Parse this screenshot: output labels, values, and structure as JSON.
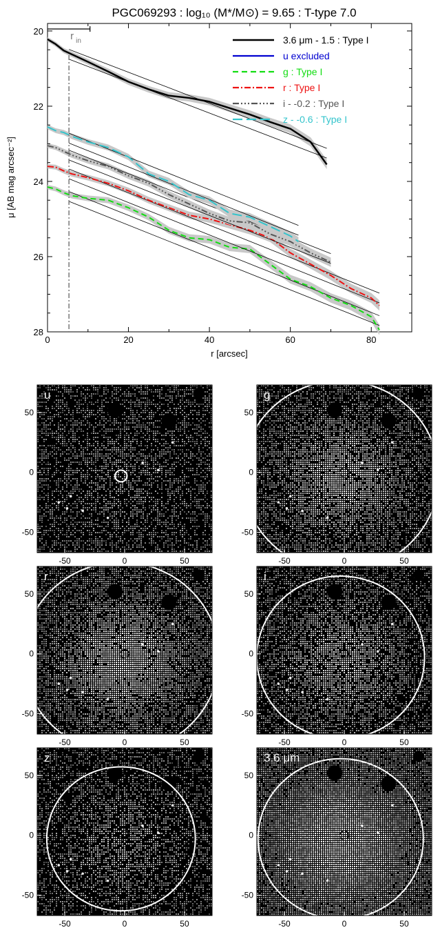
{
  "chart_data": [
    {
      "type": "line",
      "title": "PGC069293 : log₁₀ (M*/M⊙) = 9.65 : T-type 7.0",
      "xlabel": "r [arcsec]",
      "ylabel": "μ [AB mag arcsec⁻²]",
      "xlim": [
        0,
        90
      ],
      "ylim": [
        28,
        19.8
      ],
      "y_inverted": true,
      "xticks": [
        "0",
        "20",
        "40",
        "60",
        "80"
      ],
      "yticks": [
        "20",
        "22",
        "24",
        "26",
        "28"
      ],
      "r_in_label": "r",
      "r_in_sub": "in",
      "r_in": 5.3,
      "legend_position": "top-right",
      "series": [
        {
          "name": "3.6 μm - 1.5 : Type I",
          "color": "#000000",
          "dash": "",
          "x": [
            0,
            2,
            4,
            6,
            10,
            15,
            20,
            25,
            30,
            35,
            40,
            45,
            50,
            55,
            60,
            65,
            69
          ],
          "y": [
            20.22,
            20.35,
            20.52,
            20.62,
            20.82,
            21.08,
            21.35,
            21.55,
            21.72,
            21.78,
            21.88,
            22.05,
            22.22,
            22.42,
            22.6,
            22.95,
            23.55
          ],
          "fit": {
            "x": [
              5.3,
              69
            ],
            "y": [
              20.62,
              23.25
            ]
          }
        },
        {
          "name": "u excluded",
          "color": "#0000d0",
          "dash": ""
        },
        {
          "name": "g : Type I",
          "color": "#11dd11",
          "dash": "8,5",
          "x": [
            0,
            2,
            4,
            6,
            10,
            15,
            20,
            25,
            30,
            35,
            40,
            45,
            50,
            55,
            60,
            65,
            70,
            75,
            80,
            82
          ],
          "y": [
            24.15,
            24.2,
            24.3,
            24.38,
            24.45,
            24.5,
            24.7,
            24.95,
            25.3,
            25.5,
            25.55,
            25.75,
            25.8,
            26.2,
            26.6,
            26.8,
            27.1,
            27.3,
            27.6,
            27.95
          ],
          "fit": {
            "x": [
              5.3,
              82
            ],
            "y": [
              24.4,
              27.7
            ]
          }
        },
        {
          "name": "r : Type I",
          "color": "#ee1111",
          "dash": "9,3,2,3",
          "x": [
            0,
            2,
            4,
            6,
            10,
            15,
            20,
            25,
            30,
            35,
            40,
            45,
            50,
            55,
            60,
            65,
            70,
            75,
            80,
            82
          ],
          "y": [
            23.6,
            23.62,
            23.72,
            23.8,
            23.9,
            24.05,
            24.25,
            24.5,
            24.7,
            24.9,
            25.0,
            25.15,
            25.3,
            25.5,
            25.9,
            26.2,
            26.5,
            26.85,
            27.1,
            27.3
          ],
          "fit": {
            "x": [
              5.3,
              82
            ],
            "y": [
              23.8,
              27.1
            ]
          }
        },
        {
          "name": "i - -0.2 : Type I",
          "color": "#555555",
          "dash": "9,3,2,3,2,3,2,3",
          "x": [
            0,
            2,
            4,
            6,
            10,
            15,
            20,
            25,
            30,
            35,
            40,
            45,
            50,
            55,
            60,
            65,
            70
          ],
          "y": [
            23.05,
            23.1,
            23.2,
            23.3,
            23.45,
            23.6,
            23.85,
            24.05,
            24.35,
            24.6,
            24.85,
            25.05,
            25.1,
            25.4,
            25.6,
            25.9,
            26.15
          ],
          "fit": {
            "x": [
              5.3,
              70
            ],
            "y": [
              23.3,
              26.05
            ]
          }
        },
        {
          "name": "z - -0.6 : Type I",
          "color": "#33c4cc",
          "dash": "14,6",
          "x": [
            0,
            2,
            4,
            6,
            10,
            15,
            20,
            25,
            30,
            35,
            40,
            45,
            50,
            55,
            60,
            62
          ],
          "y": [
            22.55,
            22.65,
            22.7,
            22.8,
            22.95,
            23.1,
            23.35,
            23.8,
            24.0,
            24.35,
            24.5,
            24.85,
            24.95,
            25.2,
            25.45,
            25.6
          ],
          "fit": {
            "x": [
              5.3,
              62
            ],
            "y": [
              22.85,
              25.3
            ]
          }
        }
      ]
    }
  ],
  "images": {
    "ticks": [
      "-50",
      "0",
      "50"
    ],
    "panels": [
      {
        "label": "u",
        "ring_r": 5,
        "galaxy_level": 0.25,
        "black": 0.55
      },
      {
        "label": "g",
        "ring_r": 82,
        "galaxy_level": 0.9,
        "black": 0.45
      },
      {
        "label": "r",
        "ring_r": 82,
        "galaxy_level": 1.0,
        "black": 0.4
      },
      {
        "label": "i",
        "ring_r": 70,
        "galaxy_level": 0.8,
        "black": 0.48
      },
      {
        "label": "z",
        "ring_r": 62,
        "galaxy_level": 0.55,
        "black": 0.58
      },
      {
        "label": "3.6 μm",
        "ring_r": 69,
        "galaxy_level": 1.0,
        "black": 0.15
      }
    ]
  }
}
